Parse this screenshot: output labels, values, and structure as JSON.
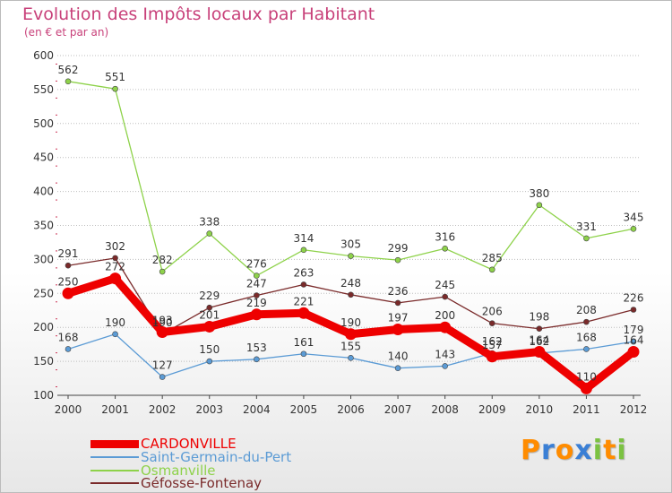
{
  "chart_data": {
    "type": "line",
    "title": "Evolution des Impôts locaux par Habitant",
    "subtitle": "(en € et par an)",
    "x": [
      "2000",
      "2001",
      "2002",
      "2003",
      "2004",
      "2005",
      "2006",
      "2007",
      "2008",
      "2009",
      "2010",
      "2011",
      "2012"
    ],
    "ylim": [
      100,
      600
    ],
    "yticks": [
      100,
      150,
      200,
      250,
      300,
      350,
      400,
      450,
      500,
      550,
      600
    ],
    "series": [
      {
        "name": "CARDONVILLE",
        "color": "#ee0000",
        "values": [
          250,
          272,
          193,
          201,
          219,
          221,
          190,
          197,
          200,
          157,
          164,
          110,
          164
        ]
      },
      {
        "name": "Saint-Germain-du-Pert",
        "color": "#5b9bd5",
        "values": [
          168,
          190,
          127,
          150,
          153,
          161,
          155,
          140,
          143,
          162,
          162,
          168,
          179
        ]
      },
      {
        "name": "Osmanville",
        "color": "#8ed24a",
        "values": [
          562,
          551,
          282,
          338,
          276,
          314,
          305,
          299,
          316,
          285,
          380,
          331,
          345
        ]
      },
      {
        "name": "Géfosse-Fontenay",
        "color": "#7a2a2a",
        "values": [
          291,
          302,
          190,
          229,
          247,
          263,
          248,
          236,
          245,
          206,
          198,
          208,
          226
        ]
      }
    ]
  },
  "logo": {
    "letters": [
      "P",
      "r",
      "o",
      "x",
      "i",
      "t",
      "i"
    ],
    "colors": [
      "#ff8c00",
      "#3a7fd5",
      "#ff8c00",
      "#3a7fd5",
      "#7bc242",
      "#ff8c00",
      "#7bc242"
    ]
  }
}
